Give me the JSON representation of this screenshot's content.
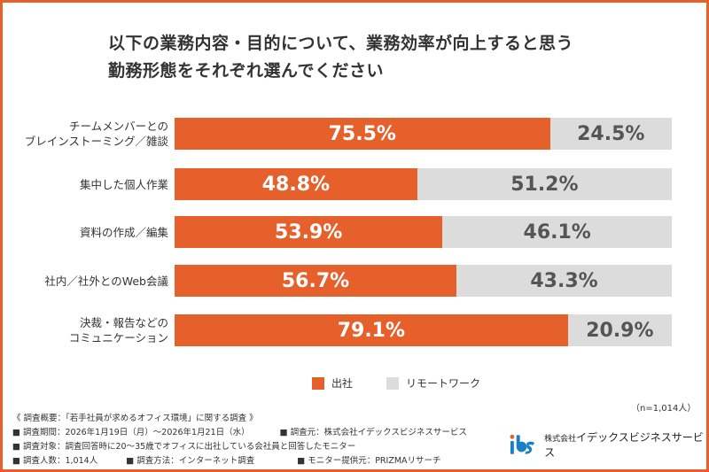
{
  "chart_data": {
    "type": "bar",
    "orientation": "horizontal-stacked-100",
    "title": [
      "以下の業務内容・目的について、業務効率が向上すると思う",
      "勤務形態をそれぞれ選んでください"
    ],
    "categories": [
      [
        "チームメンバーとの",
        "ブレインストーミング／雑談"
      ],
      [
        "集中した個人作業"
      ],
      [
        "資料の作成／編集"
      ],
      [
        "社内／社外とのWeb会議"
      ],
      [
        "決裁・報告などの",
        "コミュニケーション"
      ]
    ],
    "series": [
      {
        "name": "出社",
        "color": "#e6602c",
        "values": [
          75.5,
          48.8,
          53.9,
          56.7,
          79.1
        ],
        "labels": [
          "75.5%",
          "48.8%",
          "53.9%",
          "56.7%",
          "79.1%"
        ]
      },
      {
        "name": "リモートワーク",
        "color": "#dcdcdc",
        "values": [
          24.5,
          51.2,
          46.1,
          43.3,
          20.9
        ],
        "labels": [
          "24.5%",
          "51.2%",
          "46.1%",
          "43.3%",
          "20.9%"
        ]
      }
    ],
    "xlim": [
      0,
      100
    ],
    "legend": "bottom",
    "grid": false
  },
  "sample": "（n=1,014人）",
  "notes": {
    "heading": "《 調査概要：「若手社員が求めるオフィス環境」に関する調査 》",
    "period": "■ 調査期間：2026年1月19日（月）～2026年1月21日（水）",
    "source": "■ 調査元：株式会社イデックスビジネスサービス",
    "target": "■ 調査対象：調査回答時に20～35歳でオフィスに出社している会社員と回答したモニター",
    "count": "■ 調査人数：1,014人",
    "method": "■ 調査方法：インターネット調査",
    "provider": "■ モニター提供元：PRIZMAリサーチ"
  },
  "logo": {
    "mark": "ibs",
    "prefix": "株式会社",
    "name": "イデックスビジネスサービス"
  }
}
